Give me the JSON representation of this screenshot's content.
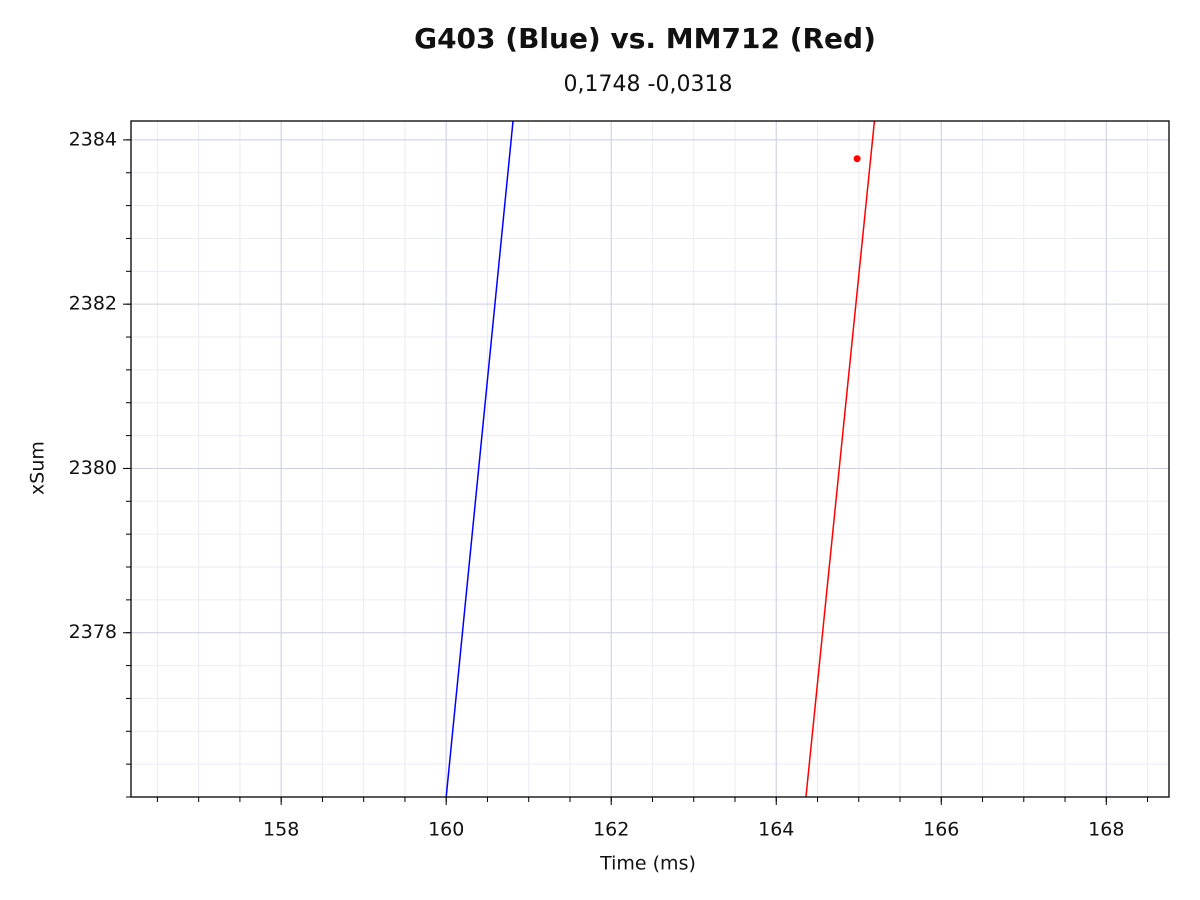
{
  "chart_data": {
    "type": "line",
    "title": "G403 (Blue) vs. MM712 (Red)",
    "subtitle": "0,1748 -0,0318",
    "xlabel": "Time (ms)",
    "ylabel": "xSum",
    "xlim": [
      156.18,
      168.76
    ],
    "ylim": [
      2376.0,
      2384.23
    ],
    "xticks": [
      158,
      160,
      162,
      164,
      166,
      168
    ],
    "yticks": [
      2378,
      2380,
      2382,
      2384
    ],
    "grid": true,
    "minor_grid": true,
    "series": [
      {
        "color": "#0000ff",
        "x": [
          160.0,
          160.81
        ],
        "values": [
          2376.0,
          2384.23
        ]
      },
      {
        "color": "#ff0000",
        "x": [
          164.36,
          165.19
        ],
        "values": [
          2376.0,
          2384.23
        ]
      }
    ],
    "points": {
      "color": "#ff0000",
      "x": [
        164.98
      ],
      "values": [
        2383.77
      ]
    }
  }
}
